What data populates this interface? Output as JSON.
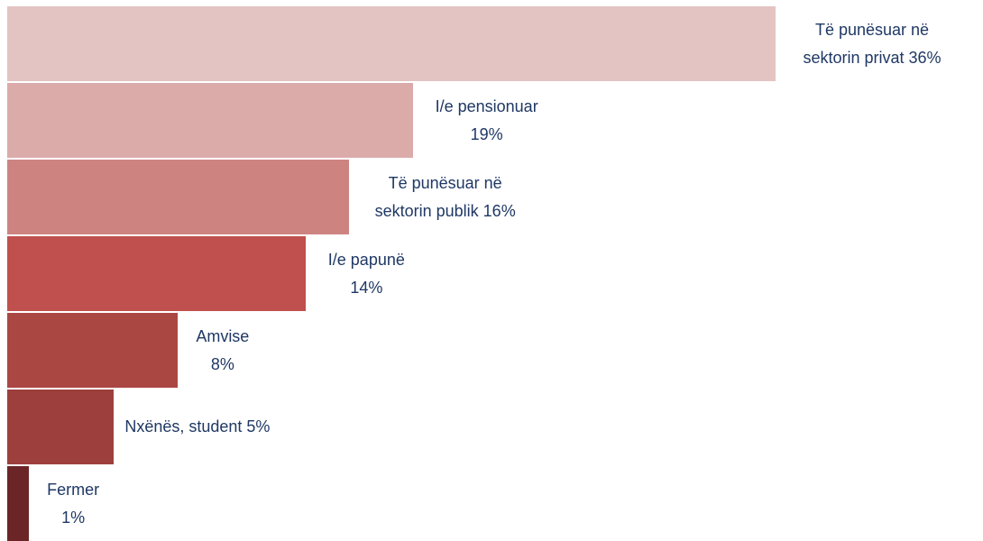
{
  "chart_data": {
    "type": "bar",
    "orientation": "horizontal",
    "categories": [
      "Të punësuar në sektorin privat",
      "I/e pensionuar",
      "Të punësuar në sektorin publik",
      "I/e papunë",
      "Amvise",
      "Nxënës, student",
      "Fermer"
    ],
    "values": [
      36,
      19,
      16,
      14,
      8,
      5,
      1
    ],
    "value_labels": [
      "36%",
      "19%",
      "16%",
      "14%",
      "8%",
      "5%",
      "1%"
    ],
    "colors": [
      "#e3c4c3",
      "#dbabaa",
      "#cd8480",
      "#c0504d",
      "#ab4743",
      "#9d403d",
      "#6b2526"
    ]
  }
}
